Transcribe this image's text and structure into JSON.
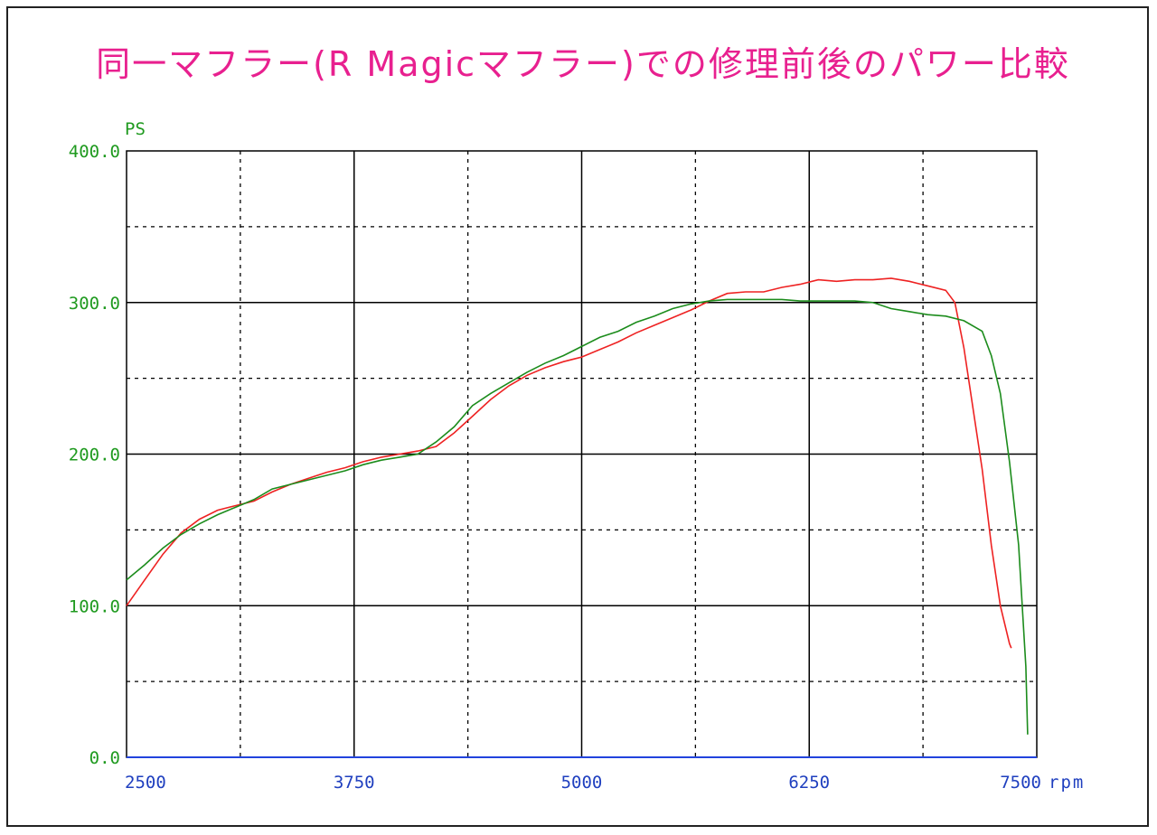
{
  "title": "同一マフラー(R Magicマフラー)での修理前後のパワー比較",
  "colors": {
    "title": "#e8208f",
    "y_axis_text": "#1f9a1f",
    "x_axis_text": "#1f3fbf",
    "series_before": "#ee2222",
    "series_after": "#1c8c1c",
    "baseline": "#2244dd",
    "grid": "#000000"
  },
  "chart_data": {
    "type": "line",
    "title": "同一マフラー(R Magicマフラー)での修理前後のパワー比較",
    "ylabel": "PS",
    "xunit": "rpm",
    "xlim": [
      2500,
      7500
    ],
    "ylim": [
      0,
      400
    ],
    "y_ticks": [
      "0.0",
      "100.0",
      "200.0",
      "300.0",
      "400.0"
    ],
    "x_ticks": [
      "2500",
      "3750",
      "5000",
      "6250",
      "7500"
    ],
    "grid": true,
    "series": [
      {
        "color": "#ee2222",
        "x": [
          2500,
          2600,
          2700,
          2800,
          2900,
          3000,
          3100,
          3200,
          3300,
          3400,
          3500,
          3600,
          3700,
          3800,
          3900,
          4000,
          4100,
          4200,
          4300,
          4400,
          4500,
          4600,
          4700,
          4800,
          4900,
          5000,
          5100,
          5200,
          5300,
          5400,
          5500,
          5600,
          5700,
          5800,
          5900,
          6000,
          6100,
          6200,
          6300,
          6400,
          6500,
          6600,
          6700,
          6800,
          6900,
          7000,
          7050,
          7100,
          7150,
          7200,
          7250,
          7300,
          7350,
          7360
        ],
        "y": [
          100,
          117,
          134,
          148,
          157,
          163,
          166,
          169,
          175,
          180,
          184,
          188,
          191,
          195,
          198,
          200,
          202,
          205,
          214,
          225,
          236,
          245,
          252,
          257,
          261,
          264,
          269,
          274,
          280,
          285,
          290,
          295,
          301,
          306,
          307,
          307,
          310,
          312,
          315,
          314,
          315,
          315,
          316,
          314,
          311,
          308,
          300,
          270,
          230,
          190,
          140,
          100,
          75,
          72
        ]
      },
      {
        "color": "#1c8c1c",
        "x": [
          2500,
          2600,
          2700,
          2800,
          2900,
          3000,
          3100,
          3200,
          3300,
          3400,
          3500,
          3600,
          3700,
          3800,
          3900,
          4000,
          4100,
          4200,
          4300,
          4400,
          4500,
          4600,
          4700,
          4800,
          4900,
          5000,
          5100,
          5200,
          5300,
          5400,
          5500,
          5600,
          5700,
          5800,
          5900,
          6000,
          6100,
          6200,
          6300,
          6400,
          6500,
          6600,
          6700,
          6800,
          6900,
          7000,
          7100,
          7200,
          7250,
          7300,
          7350,
          7400,
          7440,
          7450
        ],
        "y": [
          117,
          127,
          138,
          147,
          154,
          160,
          165,
          170,
          177,
          180,
          183,
          186,
          189,
          193,
          196,
          198,
          200,
          208,
          218,
          232,
          240,
          247,
          254,
          260,
          265,
          271,
          277,
          281,
          287,
          291,
          296,
          299,
          301,
          302,
          302,
          302,
          302,
          301,
          301,
          301,
          301,
          300,
          296,
          294,
          292,
          291,
          288,
          281,
          265,
          240,
          195,
          140,
          60,
          15
        ]
      }
    ]
  }
}
